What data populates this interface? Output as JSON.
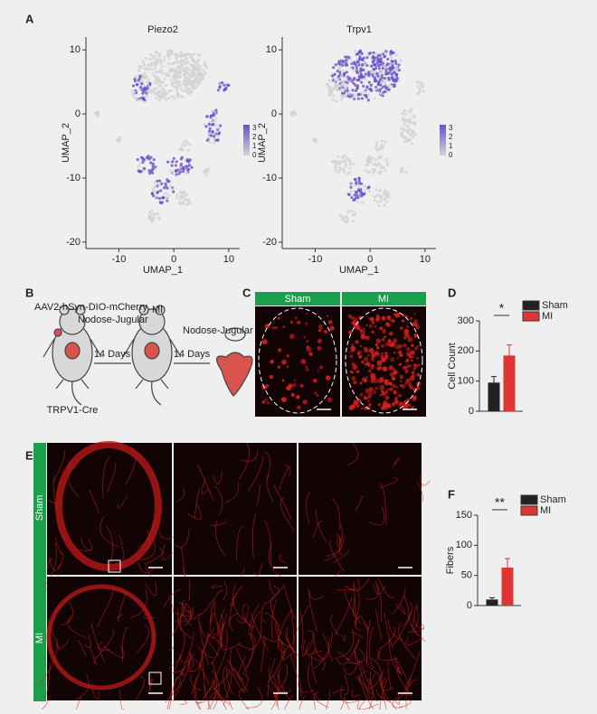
{
  "panel_labels": [
    "A",
    "B",
    "C",
    "D",
    "E",
    "F"
  ],
  "chart_data": [
    {
      "type": "scatter",
      "title": "Piezo2",
      "xlabel": "UMAP_1",
      "ylabel": "UMAP_2",
      "xlim": [
        -16,
        12
      ],
      "ylim": [
        -21,
        12
      ],
      "xticks": [
        -10,
        0,
        10
      ],
      "yticks": [
        -20,
        -10,
        0,
        10
      ],
      "colorbar_lim": [
        0,
        3.4
      ],
      "colorbar_ticks": [
        3,
        2,
        1,
        0
      ],
      "colors": [
        "#d3d3d3",
        "#6a51c9"
      ]
    },
    {
      "type": "scatter",
      "title": "Trpv1",
      "xlabel": "UMAP_1",
      "ylabel": "UMAP_2",
      "xlim": [
        -16,
        12
      ],
      "ylim": [
        -21,
        12
      ],
      "xticks": [
        -10,
        0,
        10
      ],
      "yticks": [
        -20,
        -10,
        0,
        10
      ],
      "colorbar_lim": [
        0,
        3.4
      ],
      "colorbar_ticks": [
        3,
        2,
        1,
        0
      ],
      "colors": [
        "#d3d3d3",
        "#6a51c9"
      ]
    },
    {
      "type": "bar",
      "categories": [
        "Sham",
        "MI"
      ],
      "values": [
        95,
        185
      ],
      "errors": [
        20,
        35
      ],
      "colors": [
        "#222222",
        "#e03535"
      ],
      "ylabel": "Cell Count",
      "ylim": [
        0,
        300
      ],
      "yticks": [
        0,
        100,
        200,
        300
      ],
      "significance": "*"
    },
    {
      "type": "bar",
      "categories": [
        "Sham",
        "MI"
      ],
      "values": [
        10,
        63
      ],
      "errors": [
        3,
        15
      ],
      "colors": [
        "#222222",
        "#e03535"
      ],
      "ylabel": "Fibers",
      "ylim": [
        0,
        150
      ],
      "yticks": [
        0,
        50,
        100,
        150
      ],
      "significance": "**"
    }
  ],
  "schematic": {
    "virus": "AAV2-hSyn-DIO-mCherry",
    "site1": "Nodose-Jugular",
    "surgery": "MI",
    "interval1": "14 Days",
    "interval2": "14 Days",
    "site2": "Nodose-Jugular",
    "strain": "TRPV1-Cre"
  },
  "image_panels": {
    "c_columns": [
      "Sham",
      "MI"
    ],
    "e_rows": [
      "Sham",
      "MI"
    ]
  }
}
